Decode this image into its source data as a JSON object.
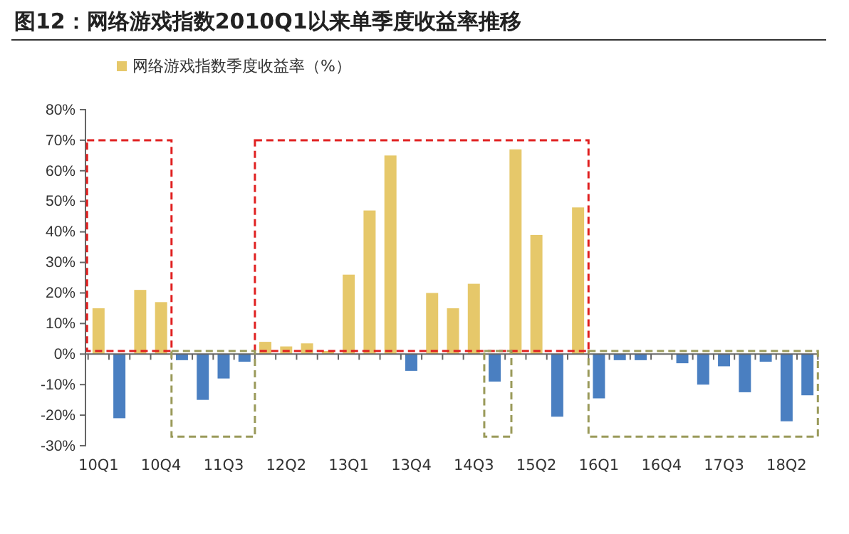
{
  "chart_data": {
    "type": "bar",
    "title": "图12：网络游戏指数2010Q1以来单季度收益率推移",
    "categories": [
      "10Q1",
      null,
      null,
      "10Q4",
      null,
      null,
      "11Q3",
      null,
      null,
      "12Q2",
      null,
      null,
      "13Q1",
      null,
      null,
      "13Q4",
      null,
      null,
      "14Q3",
      null,
      null,
      "15Q2",
      null,
      null,
      "16Q1",
      null,
      null,
      "16Q4",
      null,
      null,
      "17Q3",
      null,
      null,
      "18Q2",
      null
    ],
    "series": [
      {
        "name": "网络游戏指数季度收益率（%）",
        "color": "#e6c86a",
        "values": [
          15,
          -21,
          21,
          17,
          -2,
          -15,
          -8,
          -2.5,
          4,
          2.5,
          3.5,
          1,
          26,
          47,
          65,
          -5.5,
          20,
          15,
          23,
          -9,
          67,
          39,
          -20.5,
          48,
          -14.5,
          -2,
          -2,
          null,
          -3,
          -10,
          -4,
          -12.5,
          -2.5,
          -22,
          -13.5
        ],
        "colors": [
          "#e6c86a",
          "#4a7fc1",
          "#e6c86a",
          "#e6c86a",
          "#4a7fc1",
          "#4a7fc1",
          "#4a7fc1",
          "#4a7fc1",
          "#e6c86a",
          "#e6c86a",
          "#e6c86a",
          "#e6c86a",
          "#e6c86a",
          "#e6c86a",
          "#e6c86a",
          "#4a7fc1",
          "#e6c86a",
          "#e6c86a",
          "#e6c86a",
          "#4a7fc1",
          "#e6c86a",
          "#e6c86a",
          "#4a7fc1",
          "#e6c86a",
          "#4a7fc1",
          "#4a7fc1",
          "#4a7fc1",
          "#e6c86a",
          "#4a7fc1",
          "#4a7fc1",
          "#4a7fc1",
          "#4a7fc1",
          "#4a7fc1",
          "#4a7fc1",
          "#4a7fc1"
        ]
      }
    ],
    "ylim": [
      -30,
      80
    ],
    "yticks": [
      {
        "value": -30,
        "label": "-30%"
      },
      {
        "value": -20,
        "label": "-20%"
      },
      {
        "value": -10,
        "label": "-10%"
      },
      {
        "value": 0,
        "label": "0%"
      },
      {
        "value": 10,
        "label": "10%"
      },
      {
        "value": 20,
        "label": "20%"
      },
      {
        "value": 30,
        "label": "30%"
      },
      {
        "value": 40,
        "label": "40%"
      },
      {
        "value": 50,
        "label": "50%"
      },
      {
        "value": 60,
        "label": "60%"
      },
      {
        "value": 70,
        "label": "70%"
      },
      {
        "value": 80,
        "label": "80%"
      }
    ],
    "legend": "top"
  }
}
